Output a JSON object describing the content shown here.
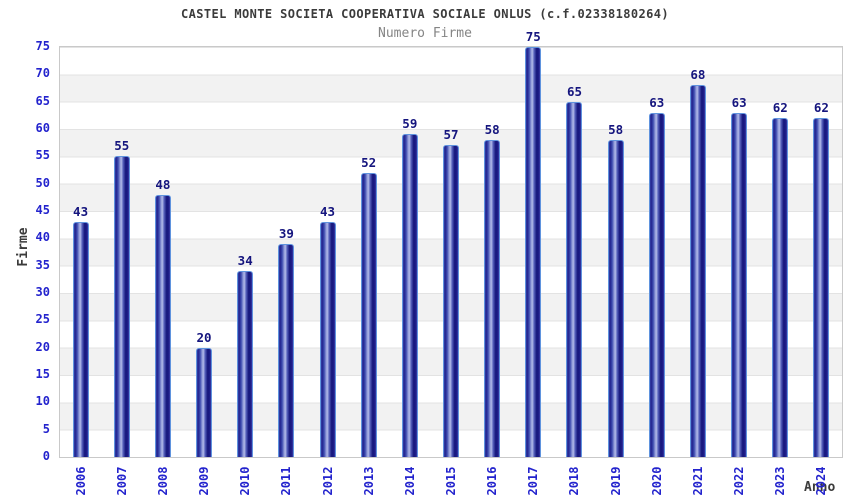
{
  "chart_data": {
    "type": "bar",
    "title": "CASTEL MONTE SOCIETA COOPERATIVA SOCIALE ONLUS (c.f.02338180264)",
    "subtitle": "Numero Firme",
    "xlabel": "Anno",
    "ylabel": "Firme",
    "categories": [
      "2006",
      "2007",
      "2008",
      "2009",
      "2010",
      "2011",
      "2012",
      "2013",
      "2014",
      "2015",
      "2016",
      "2017",
      "2018",
      "2019",
      "2020",
      "2021",
      "2022",
      "2023",
      "2024"
    ],
    "values": [
      43,
      55,
      48,
      20,
      34,
      39,
      43,
      52,
      59,
      57,
      58,
      75,
      65,
      58,
      63,
      68,
      63,
      62,
      62
    ],
    "ylim": [
      0,
      75
    ],
    "ytick_step": 5,
    "legend": null,
    "grid": "alternating horizontal bands every 5 units with light gridlines",
    "colors": {
      "bar_fill_dark": "#1b1b80",
      "bar_fill_highlight": "#b0b8e7",
      "bar_border": "#5f93de",
      "tick_label": "#2323cd",
      "value_label": "#15157e",
      "title_text": "#3b3b3b",
      "subtitle_text": "#858585",
      "band_fill": "#f2f2f2",
      "grid_line": "#e3e3e3",
      "plot_border": "#c9c9c9",
      "background": "#ffffff"
    }
  }
}
